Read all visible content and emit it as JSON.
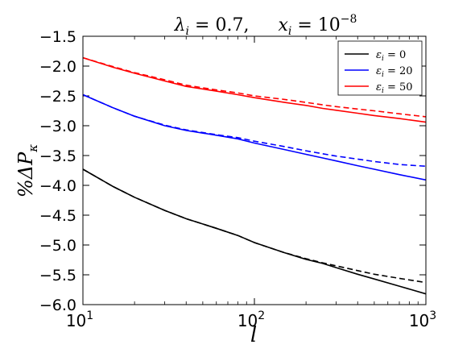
{
  "chart_data": {
    "type": "line",
    "title": {
      "part1": "λ",
      "part1_sub": "i",
      "part1_rest": " = 0.7,",
      "part2": "x",
      "part2_sub": "i",
      "part2_rest": " = 10",
      "part2_sup": "−8"
    },
    "xlabel": "l",
    "ylabel": "%ΔP",
    "ylabel_sub": "κ",
    "xscale": "log",
    "xlim": [
      10,
      1000
    ],
    "ylim": [
      -6.0,
      -1.5
    ],
    "xticks": [
      {
        "value": 10,
        "base": "10",
        "exp": "1"
      },
      {
        "value": 100,
        "base": "10",
        "exp": "2"
      },
      {
        "value": 1000,
        "base": "10",
        "exp": "3"
      }
    ],
    "yticks": [
      "−1.5",
      "−2.0",
      "−2.5",
      "−3.0",
      "−3.5",
      "−4.0",
      "−4.5",
      "−5.0",
      "−5.5",
      "−6.0"
    ],
    "ytick_values": [
      -1.5,
      -2.0,
      -2.5,
      -3.0,
      -3.5,
      -4.0,
      -4.5,
      -5.0,
      -5.5,
      -6.0
    ],
    "legend_position": "top-right",
    "grid": false,
    "x": [
      10,
      15,
      20,
      30,
      40,
      60,
      80,
      100,
      150,
      200,
      250,
      300,
      400,
      500,
      700,
      1000
    ],
    "series": [
      {
        "name_base": "ε",
        "name_sub": "i",
        "name_rest": " = 0",
        "color": "#000000",
        "solid": [
          -3.73,
          -4.02,
          -4.2,
          -4.42,
          -4.56,
          -4.72,
          -4.84,
          -4.96,
          -5.13,
          -5.24,
          -5.31,
          -5.38,
          -5.49,
          -5.57,
          -5.69,
          -5.82
        ],
        "dashed": [
          -3.73,
          -4.02,
          -4.2,
          -4.42,
          -4.56,
          -4.72,
          -4.84,
          -4.96,
          -5.13,
          -5.23,
          -5.3,
          -5.35,
          -5.43,
          -5.49,
          -5.56,
          -5.63
        ]
      },
      {
        "name_base": "ε",
        "name_sub": "i",
        "name_rest": " = 20",
        "color": "#0000ff",
        "solid": [
          -2.48,
          -2.7,
          -2.84,
          -3.0,
          -3.08,
          -3.16,
          -3.22,
          -3.29,
          -3.4,
          -3.48,
          -3.54,
          -3.59,
          -3.67,
          -3.73,
          -3.82,
          -3.91
        ],
        "dashed": [
          -2.48,
          -2.7,
          -2.84,
          -2.99,
          -3.07,
          -3.15,
          -3.2,
          -3.26,
          -3.35,
          -3.42,
          -3.47,
          -3.51,
          -3.56,
          -3.6,
          -3.65,
          -3.68
        ]
      },
      {
        "name_base": "ε",
        "name_sub": "i",
        "name_rest": " = 50",
        "color": "#ff0000",
        "solid": [
          -1.86,
          -2.02,
          -2.12,
          -2.25,
          -2.34,
          -2.42,
          -2.48,
          -2.53,
          -2.61,
          -2.66,
          -2.71,
          -2.74,
          -2.79,
          -2.83,
          -2.88,
          -2.94
        ],
        "dashed": [
          -1.86,
          -2.01,
          -2.11,
          -2.23,
          -2.32,
          -2.4,
          -2.45,
          -2.5,
          -2.56,
          -2.61,
          -2.65,
          -2.68,
          -2.72,
          -2.75,
          -2.8,
          -2.85
        ]
      }
    ]
  }
}
